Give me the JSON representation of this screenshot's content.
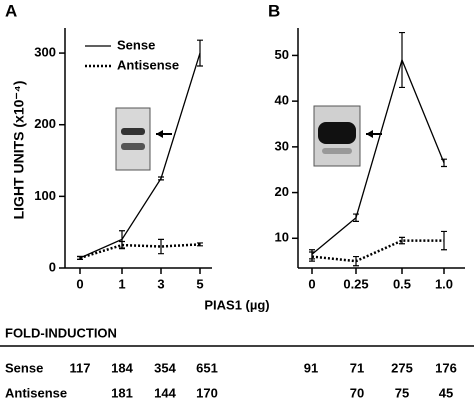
{
  "chart_data": [
    {
      "type": "line",
      "panel": "A",
      "categories": [
        "0",
        "1",
        "3",
        "5"
      ],
      "ylim": [
        0,
        335
      ],
      "yticks": [
        0,
        100,
        200,
        300
      ],
      "legend": "top-left",
      "series": [
        {
          "name": "Sense",
          "color": "#000000",
          "dash": false,
          "values": [
            14,
            40,
            125,
            300
          ],
          "errors": [
            2,
            12,
            2,
            18
          ]
        },
        {
          "name": "Antisense",
          "color": "#000000",
          "dash": true,
          "values": [
            14,
            32,
            30,
            33
          ],
          "errors": [
            2,
            5,
            10,
            2
          ]
        }
      ]
    },
    {
      "type": "line",
      "panel": "B",
      "categories": [
        "0",
        "0.25",
        "0.5",
        "1.0"
      ],
      "ylim": [
        3.5,
        56
      ],
      "yticks": [
        10,
        20,
        30,
        40,
        50
      ],
      "series": [
        {
          "color": "#000000",
          "dash": false,
          "values": [
            6.5,
            14.5,
            49,
            26.5
          ],
          "errors": [
            1,
            0.8,
            6,
            0.8
          ]
        },
        {
          "color": "#000000",
          "dash": true,
          "values": [
            6,
            5,
            9.5,
            9.5
          ],
          "errors": [
            1,
            1,
            0.7,
            2
          ]
        }
      ]
    }
  ],
  "ylabel": "LIGHT UNITS (x10⁻⁴)",
  "xlabel": "PIAS1 (µg)",
  "table": {
    "title": "FOLD-INDUCTION",
    "rows": [
      [
        "Sense",
        117,
        184,
        354,
        651,
        91,
        71,
        275,
        176
      ],
      [
        "Antisense",
        null,
        181,
        144,
        170,
        null,
        70,
        75,
        45
      ]
    ]
  }
}
